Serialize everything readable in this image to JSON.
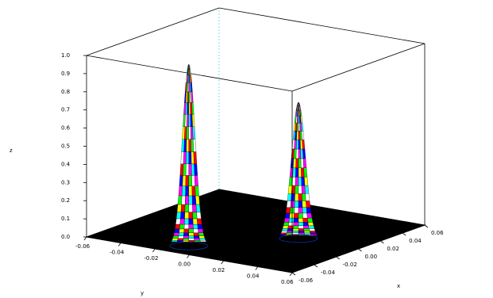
{
  "chart_data": {
    "type": "surface3d",
    "title": "",
    "xlabel": "x",
    "ylabel": "y",
    "zlabel": "z",
    "xlim": [
      -0.06,
      0.06
    ],
    "ylim": [
      -0.06,
      0.06
    ],
    "zlim": [
      0.0,
      1.0
    ],
    "x_ticks": [
      "-0.06",
      "-0.04",
      "-0.02",
      "0.00",
      "0.02",
      "0.04",
      "0.06"
    ],
    "y_ticks": [
      "-0.06",
      "-0.04",
      "-0.02",
      "0.00",
      "0.02",
      "0.04",
      "0.06"
    ],
    "z_ticks": [
      "0.0",
      "0.1",
      "0.2",
      "0.3",
      "0.4",
      "0.5",
      "0.6",
      "0.7",
      "0.8",
      "0.9",
      "1.0"
    ],
    "peaks": [
      {
        "x": 0.025,
        "y": 0.0,
        "z": 0.75
      },
      {
        "x": -0.01,
        "y": 0.045,
        "z": 1.0
      }
    ],
    "base_color": "#000000",
    "colormap": [
      "#0000ff",
      "#00ff00",
      "#00ffff",
      "#ff0000",
      "#ff00ff",
      "#ffff00",
      "#ffffff"
    ]
  }
}
